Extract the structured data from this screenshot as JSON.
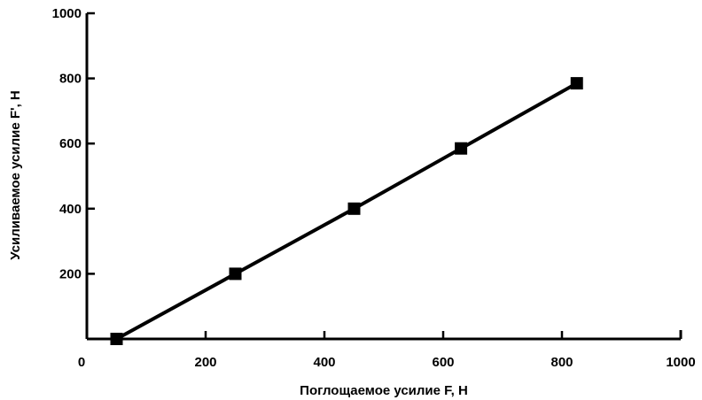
{
  "chart_data": {
    "type": "line",
    "title": "",
    "xlabel": "Поглощаемое усилие F, Н",
    "ylabel": "Усиливаемое усилие F', Н",
    "xlim": [
      0,
      1000
    ],
    "ylim": [
      0,
      1000
    ],
    "xticks": [
      "0",
      "200",
      "400",
      "600",
      "800",
      "1000"
    ],
    "yticks": [
      "200",
      "400",
      "600",
      "800",
      "1000"
    ],
    "grid": false,
    "series": [
      {
        "x": [
          50,
          250,
          450,
          630,
          825
        ],
        "y": [
          0,
          200,
          400,
          585,
          785
        ],
        "marker": "square",
        "color": "#000000"
      }
    ]
  }
}
